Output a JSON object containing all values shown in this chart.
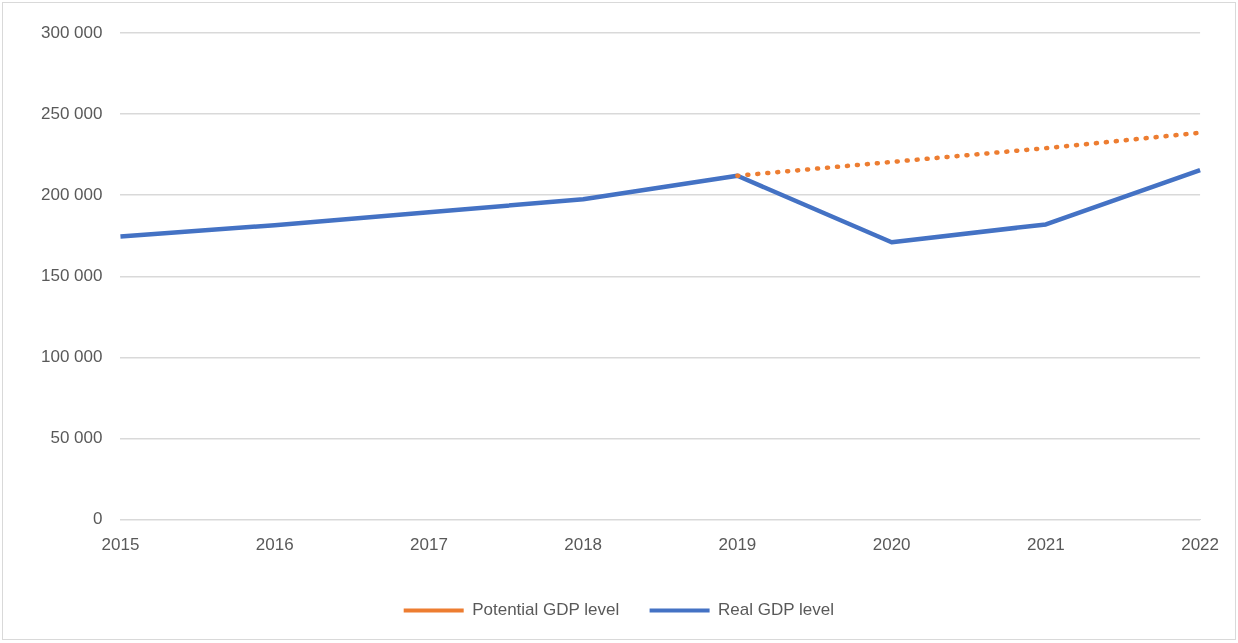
{
  "chart_data": {
    "type": "line",
    "categories": [
      "2015",
      "2016",
      "2017",
      "2018",
      "2019",
      "2020",
      "2021",
      "2022"
    ],
    "series": [
      {
        "name": "Potential GDP level",
        "color": "#ed7d31",
        "line_style": "dotted",
        "values": [
          null,
          null,
          null,
          null,
          212000,
          220500,
          229000,
          238500
        ]
      },
      {
        "name": "Real GDP level",
        "color": "#4472c4",
        "line_style": "solid",
        "values": [
          174500,
          181500,
          189500,
          197500,
          212000,
          171000,
          182000,
          215500
        ]
      }
    ],
    "ylim": [
      0,
      300000
    ],
    "yticks": [
      {
        "value": 0,
        "label": "0"
      },
      {
        "value": 50000,
        "label": "50 000"
      },
      {
        "value": 100000,
        "label": "100 000"
      },
      {
        "value": 150000,
        "label": "150 000"
      },
      {
        "value": 200000,
        "label": "200 000"
      },
      {
        "value": 250000,
        "label": "250 000"
      },
      {
        "value": 300000,
        "label": "300 000"
      }
    ],
    "grid": "y",
    "legend": "bottom",
    "marker": "none"
  }
}
